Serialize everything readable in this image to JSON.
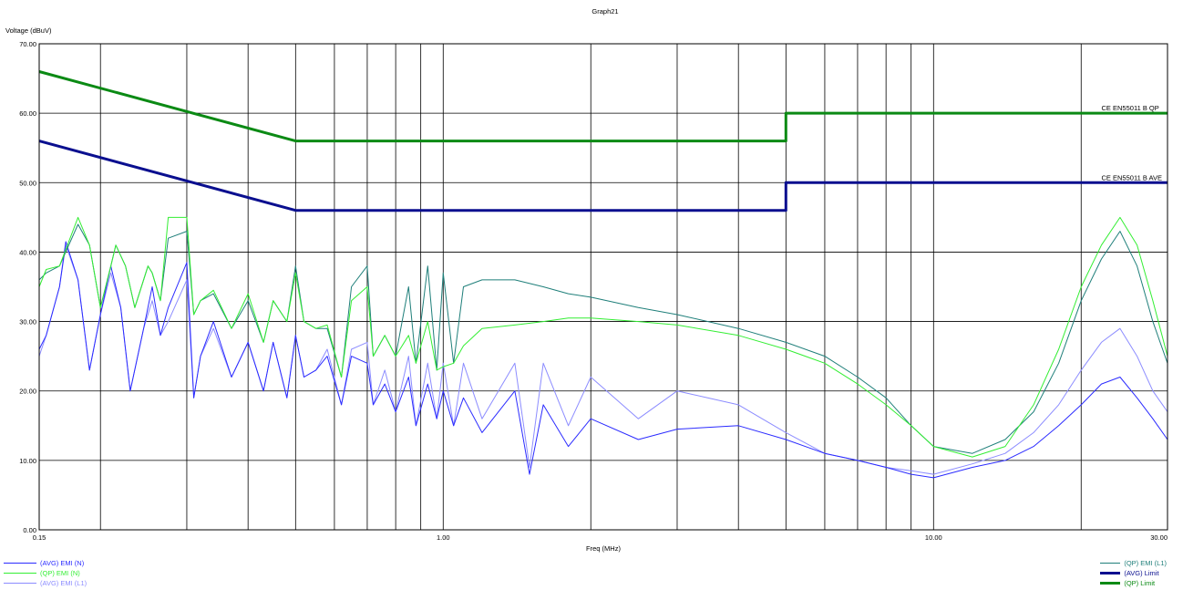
{
  "chart_data": {
    "type": "line",
    "title": "Graph21",
    "xlabel": "Freq (MHz)",
    "ylabel": "Voltage (dBuV)",
    "xscale": "log",
    "xlim": [
      0.15,
      30.0
    ],
    "ylim": [
      0.0,
      70.0
    ],
    "grid": true,
    "legend_placement": "bottom",
    "x_ticks": [
      {
        "value": 0.15,
        "label": "0.15"
      },
      {
        "value": 1.0,
        "label": "1.00"
      },
      {
        "value": 10.0,
        "label": "10.00"
      },
      {
        "value": 30.0,
        "label": "30.00"
      }
    ],
    "y_ticks": [
      {
        "value": 0,
        "label": "0.00"
      },
      {
        "value": 10,
        "label": "10.00"
      },
      {
        "value": 20,
        "label": "20.00"
      },
      {
        "value": 30,
        "label": "30.00"
      },
      {
        "value": 40,
        "label": "40.00"
      },
      {
        "value": 50,
        "label": "50.00"
      },
      {
        "value": 60,
        "label": "60.00"
      },
      {
        "value": 70,
        "label": "70.00"
      }
    ],
    "annotations": [
      {
        "text": "CE EN55011 B QP",
        "x": 22.0,
        "y": 60.0
      },
      {
        "text": "CE EN55011 B AVE",
        "x": 22.0,
        "y": 50.0
      }
    ],
    "series": [
      {
        "name": "(QP) Limit",
        "color": "#0b8a14",
        "width": 3,
        "points": [
          [
            0.15,
            66.0
          ],
          [
            0.5,
            56.0
          ],
          [
            5.0,
            56.0
          ],
          [
            5.0,
            60.0
          ],
          [
            30.0,
            60.0
          ]
        ]
      },
      {
        "name": "(AVG) Limit",
        "color": "#0a0f8f",
        "width": 3,
        "points": [
          [
            0.15,
            56.0
          ],
          [
            0.5,
            46.0
          ],
          [
            5.0,
            46.0
          ],
          [
            5.0,
            50.0
          ],
          [
            30.0,
            50.0
          ]
        ]
      },
      {
        "name": "(QP) EMI (N)",
        "color": "#33ee33",
        "width": 1,
        "points": [
          [
            0.15,
            35.0
          ],
          [
            0.155,
            37.5
          ],
          [
            0.165,
            38.0
          ],
          [
            0.18,
            45.0
          ],
          [
            0.19,
            41.0
          ],
          [
            0.2,
            32.0
          ],
          [
            0.21,
            38.0
          ],
          [
            0.215,
            41.0
          ],
          [
            0.225,
            38.0
          ],
          [
            0.235,
            32.0
          ],
          [
            0.25,
            38.0
          ],
          [
            0.255,
            37.0
          ],
          [
            0.265,
            33.0
          ],
          [
            0.275,
            45.0
          ],
          [
            0.3,
            45.0
          ],
          [
            0.31,
            31.0
          ],
          [
            0.32,
            33.0
          ],
          [
            0.34,
            34.5
          ],
          [
            0.37,
            29.0
          ],
          [
            0.4,
            34.0
          ],
          [
            0.43,
            27.0
          ],
          [
            0.45,
            33.0
          ],
          [
            0.48,
            30.0
          ],
          [
            0.5,
            37.0
          ],
          [
            0.52,
            30.0
          ],
          [
            0.55,
            29.0
          ],
          [
            0.58,
            29.5
          ],
          [
            0.62,
            22.0
          ],
          [
            0.65,
            33.0
          ],
          [
            0.7,
            35.0
          ],
          [
            0.72,
            25.0
          ],
          [
            0.76,
            28.0
          ],
          [
            0.8,
            25.0
          ],
          [
            0.85,
            28.0
          ],
          [
            0.88,
            24.0
          ],
          [
            0.93,
            30.0
          ],
          [
            0.97,
            23.0
          ],
          [
            1.0,
            23.5
          ],
          [
            1.05,
            24.0
          ],
          [
            1.1,
            26.5
          ],
          [
            1.2,
            29.0
          ],
          [
            1.4,
            29.5
          ],
          [
            1.6,
            30.0
          ],
          [
            1.8,
            30.5
          ],
          [
            2.0,
            30.5
          ],
          [
            2.5,
            30.0
          ],
          [
            3.0,
            29.5
          ],
          [
            4.0,
            28.0
          ],
          [
            5.0,
            26.0
          ],
          [
            6.0,
            24.0
          ],
          [
            7.0,
            21.0
          ],
          [
            8.0,
            18.0
          ],
          [
            9.0,
            15.0
          ],
          [
            10.0,
            12.0
          ],
          [
            12.0,
            10.5
          ],
          [
            14.0,
            12.0
          ],
          [
            16.0,
            18.0
          ],
          [
            18.0,
            26.0
          ],
          [
            20.0,
            35.0
          ],
          [
            22.0,
            41.0
          ],
          [
            24.0,
            45.0
          ],
          [
            26.0,
            41.0
          ],
          [
            28.0,
            33.0
          ],
          [
            30.0,
            25.0
          ]
        ]
      },
      {
        "name": "(QP) EMI (L1)",
        "color": "#1f7f7a",
        "width": 1,
        "points": [
          [
            0.15,
            36.0
          ],
          [
            0.155,
            37.0
          ],
          [
            0.165,
            38.0
          ],
          [
            0.18,
            44.0
          ],
          [
            0.19,
            41.0
          ],
          [
            0.2,
            32.0
          ],
          [
            0.21,
            38.0
          ],
          [
            0.215,
            41.0
          ],
          [
            0.225,
            38.0
          ],
          [
            0.235,
            32.0
          ],
          [
            0.25,
            38.0
          ],
          [
            0.255,
            37.0
          ],
          [
            0.265,
            33.0
          ],
          [
            0.275,
            42.0
          ],
          [
            0.3,
            43.0
          ],
          [
            0.31,
            31.0
          ],
          [
            0.32,
            33.0
          ],
          [
            0.34,
            34.0
          ],
          [
            0.37,
            29.0
          ],
          [
            0.4,
            33.0
          ],
          [
            0.43,
            27.0
          ],
          [
            0.45,
            33.0
          ],
          [
            0.48,
            30.0
          ],
          [
            0.5,
            38.0
          ],
          [
            0.52,
            30.0
          ],
          [
            0.55,
            29.0
          ],
          [
            0.58,
            29.0
          ],
          [
            0.62,
            22.0
          ],
          [
            0.65,
            35.0
          ],
          [
            0.7,
            38.0
          ],
          [
            0.72,
            25.0
          ],
          [
            0.76,
            28.0
          ],
          [
            0.8,
            25.0
          ],
          [
            0.85,
            35.0
          ],
          [
            0.88,
            24.0
          ],
          [
            0.93,
            38.0
          ],
          [
            0.97,
            23.0
          ],
          [
            1.0,
            37.0
          ],
          [
            1.05,
            24.0
          ],
          [
            1.1,
            35.0
          ],
          [
            1.2,
            36.0
          ],
          [
            1.4,
            36.0
          ],
          [
            1.6,
            35.0
          ],
          [
            1.8,
            34.0
          ],
          [
            2.0,
            33.5
          ],
          [
            2.5,
            32.0
          ],
          [
            3.0,
            31.0
          ],
          [
            4.0,
            29.0
          ],
          [
            5.0,
            27.0
          ],
          [
            6.0,
            25.0
          ],
          [
            7.0,
            22.0
          ],
          [
            8.0,
            19.0
          ],
          [
            9.0,
            15.0
          ],
          [
            10.0,
            12.0
          ],
          [
            12.0,
            11.0
          ],
          [
            14.0,
            13.0
          ],
          [
            16.0,
            17.0
          ],
          [
            18.0,
            24.0
          ],
          [
            20.0,
            33.0
          ],
          [
            22.0,
            39.0
          ],
          [
            24.0,
            43.0
          ],
          [
            26.0,
            38.0
          ],
          [
            28.0,
            30.0
          ],
          [
            30.0,
            24.0
          ]
        ]
      },
      {
        "name": "(AVG) EMI (N)",
        "color": "#2b2bff",
        "width": 1,
        "points": [
          [
            0.15,
            26.0
          ],
          [
            0.155,
            28.0
          ],
          [
            0.165,
            35.0
          ],
          [
            0.17,
            41.5
          ],
          [
            0.18,
            36.0
          ],
          [
            0.19,
            23.0
          ],
          [
            0.2,
            31.0
          ],
          [
            0.21,
            38.0
          ],
          [
            0.22,
            32.0
          ],
          [
            0.23,
            20.0
          ],
          [
            0.245,
            29.0
          ],
          [
            0.255,
            35.0
          ],
          [
            0.265,
            28.0
          ],
          [
            0.275,
            32.0
          ],
          [
            0.3,
            38.5
          ],
          [
            0.31,
            19.0
          ],
          [
            0.32,
            25.0
          ],
          [
            0.34,
            30.0
          ],
          [
            0.37,
            22.0
          ],
          [
            0.4,
            27.0
          ],
          [
            0.43,
            20.0
          ],
          [
            0.45,
            27.0
          ],
          [
            0.48,
            19.0
          ],
          [
            0.5,
            28.0
          ],
          [
            0.52,
            22.0
          ],
          [
            0.55,
            23.0
          ],
          [
            0.58,
            25.0
          ],
          [
            0.62,
            18.0
          ],
          [
            0.65,
            25.0
          ],
          [
            0.7,
            24.0
          ],
          [
            0.72,
            18.0
          ],
          [
            0.76,
            21.0
          ],
          [
            0.8,
            17.0
          ],
          [
            0.85,
            22.0
          ],
          [
            0.88,
            15.0
          ],
          [
            0.93,
            21.0
          ],
          [
            0.97,
            16.0
          ],
          [
            1.0,
            20.0
          ],
          [
            1.05,
            15.0
          ],
          [
            1.1,
            19.0
          ],
          [
            1.2,
            14.0
          ],
          [
            1.4,
            20.0
          ],
          [
            1.5,
            8.0
          ],
          [
            1.6,
            18.0
          ],
          [
            1.8,
            12.0
          ],
          [
            2.0,
            16.0
          ],
          [
            2.5,
            13.0
          ],
          [
            3.0,
            14.5
          ],
          [
            4.0,
            15.0
          ],
          [
            5.0,
            13.0
          ],
          [
            6.0,
            11.0
          ],
          [
            7.0,
            10.0
          ],
          [
            8.0,
            9.0
          ],
          [
            9.0,
            8.0
          ],
          [
            10.0,
            7.5
          ],
          [
            12.0,
            9.0
          ],
          [
            14.0,
            10.0
          ],
          [
            16.0,
            12.0
          ],
          [
            18.0,
            15.0
          ],
          [
            20.0,
            18.0
          ],
          [
            22.0,
            21.0
          ],
          [
            24.0,
            22.0
          ],
          [
            26.0,
            19.0
          ],
          [
            28.0,
            16.0
          ],
          [
            30.0,
            13.0
          ]
        ]
      },
      {
        "name": "(AVG) EMI (L1)",
        "color": "#8c8cff",
        "width": 1,
        "points": [
          [
            0.15,
            25.0
          ],
          [
            0.155,
            28.0
          ],
          [
            0.165,
            35.0
          ],
          [
            0.17,
            41.0
          ],
          [
            0.18,
            36.0
          ],
          [
            0.19,
            23.0
          ],
          [
            0.2,
            31.0
          ],
          [
            0.21,
            37.0
          ],
          [
            0.22,
            32.0
          ],
          [
            0.23,
            20.0
          ],
          [
            0.245,
            29.0
          ],
          [
            0.255,
            33.0
          ],
          [
            0.265,
            28.0
          ],
          [
            0.275,
            30.0
          ],
          [
            0.3,
            36.0
          ],
          [
            0.31,
            19.0
          ],
          [
            0.32,
            25.0
          ],
          [
            0.34,
            29.0
          ],
          [
            0.37,
            22.0
          ],
          [
            0.4,
            27.0
          ],
          [
            0.43,
            20.0
          ],
          [
            0.45,
            27.0
          ],
          [
            0.48,
            19.0
          ],
          [
            0.5,
            28.0
          ],
          [
            0.52,
            22.0
          ],
          [
            0.55,
            23.0
          ],
          [
            0.58,
            26.0
          ],
          [
            0.62,
            18.0
          ],
          [
            0.65,
            26.0
          ],
          [
            0.7,
            27.0
          ],
          [
            0.72,
            18.0
          ],
          [
            0.76,
            23.0
          ],
          [
            0.8,
            17.0
          ],
          [
            0.85,
            25.0
          ],
          [
            0.88,
            15.0
          ],
          [
            0.93,
            24.0
          ],
          [
            0.97,
            16.0
          ],
          [
            1.0,
            24.0
          ],
          [
            1.05,
            15.0
          ],
          [
            1.1,
            24.0
          ],
          [
            1.2,
            16.0
          ],
          [
            1.4,
            24.0
          ],
          [
            1.5,
            9.0
          ],
          [
            1.6,
            24.0
          ],
          [
            1.8,
            15.0
          ],
          [
            2.0,
            22.0
          ],
          [
            2.5,
            16.0
          ],
          [
            3.0,
            20.0
          ],
          [
            4.0,
            18.0
          ],
          [
            5.0,
            14.0
          ],
          [
            6.0,
            11.0
          ],
          [
            7.0,
            10.0
          ],
          [
            8.0,
            9.0
          ],
          [
            9.0,
            8.5
          ],
          [
            10.0,
            8.0
          ],
          [
            12.0,
            9.5
          ],
          [
            14.0,
            11.0
          ],
          [
            16.0,
            14.0
          ],
          [
            18.0,
            18.0
          ],
          [
            20.0,
            23.0
          ],
          [
            22.0,
            27.0
          ],
          [
            24.0,
            29.0
          ],
          [
            26.0,
            25.0
          ],
          [
            28.0,
            20.0
          ],
          [
            30.0,
            17.0
          ]
        ]
      }
    ],
    "legend_left": [
      {
        "name": "(AVG) EMI (N)",
        "color": "#2b2bff",
        "width": 1
      },
      {
        "name": "(QP) EMI (N)",
        "color": "#33ee33",
        "width": 1
      },
      {
        "name": "(AVG) EMI (L1)",
        "color": "#8c8cff",
        "width": 1
      }
    ],
    "legend_right": [
      {
        "name": "(QP) EMI (L1)",
        "color": "#1f7f7a",
        "width": 1
      },
      {
        "name": "(AVG) Limit",
        "color": "#0a0f8f",
        "width": 3
      },
      {
        "name": "(QP) Limit",
        "color": "#0b8a14",
        "width": 3
      }
    ]
  }
}
